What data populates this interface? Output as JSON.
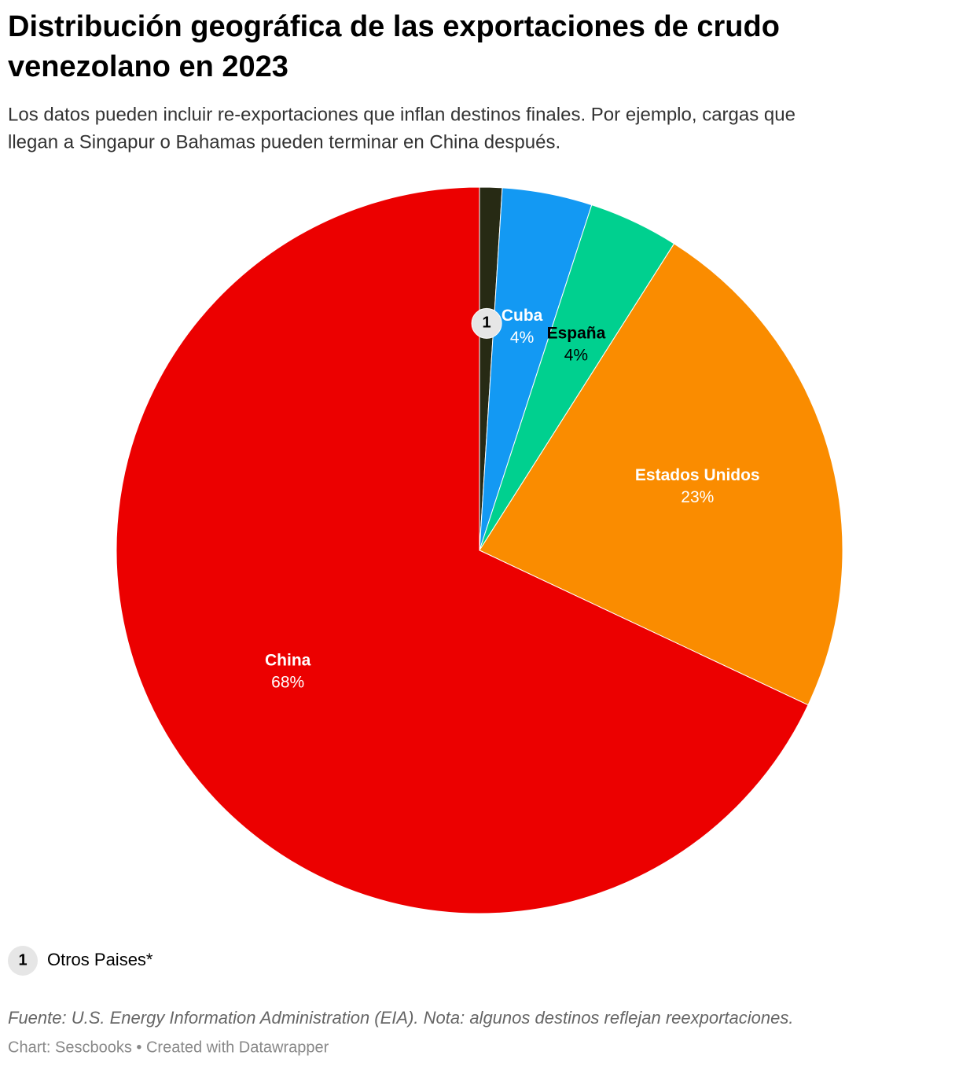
{
  "chart_data": {
    "type": "pie",
    "title_lines": [
      "Distribución geográfica de las exportaciones de crudo",
      "venezolano en 2023"
    ],
    "subtitle_lines": [
      "Los datos pueden incluir re-exportaciones que inflan destinos finales. Por ejemplo, cargas que",
      "llegan a Singapur o Bahamas pueden terminar en China después."
    ],
    "categories": [
      "Otros Paises*",
      "Cuba",
      "España",
      "Estados Unidos",
      "China"
    ],
    "values": [
      1,
      4,
      4,
      23,
      68
    ],
    "value_labels": [
      null,
      "4%",
      "4%",
      "23%",
      "68%"
    ],
    "colors": [
      "#272a14",
      "#1399f3",
      "#00d08f",
      "#fa8c00",
      "#ec0000"
    ],
    "label_colors": [
      null,
      "#ffffff",
      "#000000",
      "#ffffff",
      "#ffffff"
    ],
    "note_marker": "1",
    "source": "Fuente: U.S. Energy Information Administration (EIA). Nota: algunos destinos reflejan reexportaciones.",
    "credit": "Chart: Sescbooks • Created with Datawrapper"
  }
}
